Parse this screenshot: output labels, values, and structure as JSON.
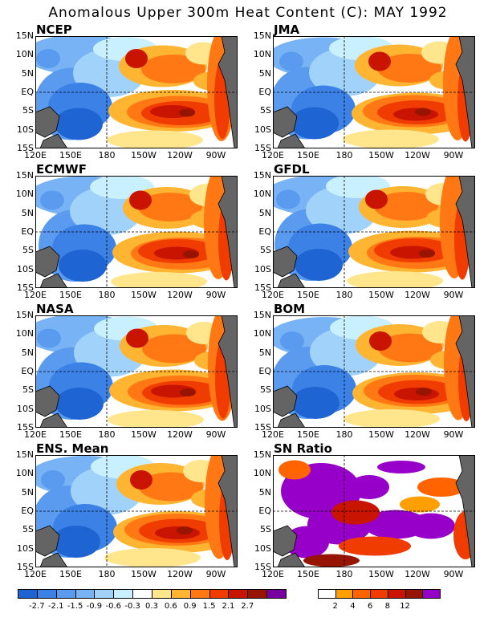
{
  "title": "Anomalous Upper 300m Heat Content (C): MAY 1992",
  "lat_labels": [
    "15N",
    "10N",
    "5N",
    "EQ",
    "5S",
    "10S",
    "15S"
  ],
  "lon_labels": [
    "120E",
    "150E",
    "180",
    "150W",
    "120W",
    "90W"
  ],
  "panels": [
    {
      "name": "NCEP",
      "kind": "anom"
    },
    {
      "name": "JMA",
      "kind": "anom"
    },
    {
      "name": "ECMWF",
      "kind": "anom"
    },
    {
      "name": "GFDL",
      "kind": "anom"
    },
    {
      "name": "NASA",
      "kind": "anom"
    },
    {
      "name": "BOM",
      "kind": "anom"
    },
    {
      "name": "ENS. Mean",
      "kind": "anom"
    },
    {
      "name": "SN Ratio",
      "kind": "sn"
    }
  ],
  "anomaly_colorbar": {
    "colors": [
      "#1e64d2",
      "#3c82e6",
      "#5a9bf0",
      "#78b4f5",
      "#a0d2fa",
      "#c8f0ff",
      "#ffffff",
      "#ffe68c",
      "#ffb432",
      "#ff7814",
      "#f03c00",
      "#c81400",
      "#961400",
      "#7800a0"
    ],
    "labels": [
      "-2.7",
      "-2.1",
      "-1.5",
      "-0.9",
      "-0.6",
      "-0.3",
      "0.3",
      "0.6",
      "0.9",
      "1.5",
      "2.1",
      "2.7"
    ]
  },
  "sn_colorbar": {
    "colors": [
      "#ffffff",
      "#ffa000",
      "#ff6400",
      "#f03c00",
      "#c81400",
      "#961400",
      "#9600c8"
    ],
    "labels": [
      "2",
      "4",
      "6",
      "8",
      "12"
    ]
  },
  "colors": {
    "land": "#646464",
    "coast": "#000000"
  }
}
